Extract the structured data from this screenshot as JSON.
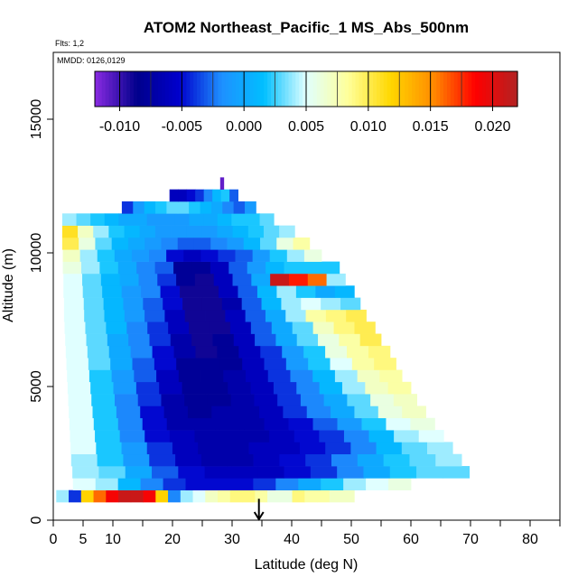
{
  "chart_data": {
    "type": "heatmap",
    "title": "ATOM2 Northeast_Pacific_1 MS_Abs_500nm",
    "flights_label": "Flts: 1,2",
    "dates_label": "MMDD: 0126,0129",
    "xlabel": "Latitude (deg N)",
    "ylabel": "Altitude (m)",
    "xlim": [
      0,
      85
    ],
    "ylim": [
      0,
      17500
    ],
    "x_ticks": [
      0,
      5,
      10,
      20,
      30,
      40,
      50,
      60,
      70,
      80
    ],
    "y_ticks": [
      0,
      5000,
      10000,
      15000
    ],
    "colorbar": {
      "min": -0.012,
      "max": 0.022,
      "ticks": [
        -0.01,
        -0.005,
        0.0,
        0.005,
        0.01,
        0.015,
        0.02
      ],
      "tick_labels": [
        "-0.010",
        "-0.005",
        "0.000",
        "0.005",
        "0.010",
        "0.015",
        "0.020"
      ],
      "colors": [
        "#8a2be2",
        "#00008b",
        "#0000cd",
        "#1e90ff",
        "#00bfff",
        "#e0ffff",
        "#ffff99",
        "#ffd700",
        "#ff8c00",
        "#ff0000",
        "#b22222"
      ]
    },
    "grid": false,
    "legend": "top colorbar",
    "arrow_marker": {
      "latitude": 34.5,
      "direction": "down"
    },
    "rows": [
      {
        "altitude": 900,
        "x0": 0.5,
        "x1": 50.5,
        "values": [
          0.004,
          -0.004,
          0.012,
          0.016,
          0.019,
          0.021,
          0.021,
          0.019,
          0.012,
          -0.002,
          0.004,
          0.005,
          0.007,
          0.008,
          0.009,
          0.009,
          0.008,
          0.006,
          0.006,
          0.009,
          0.008,
          0.008,
          0.007,
          0.007
        ]
      },
      {
        "altitude": 1350,
        "x0": 3.3,
        "x1": 60.0,
        "values": [
          0.005,
          0.004,
          0.001,
          -0.002,
          -0.004,
          -0.005,
          -0.005,
          -0.005,
          -0.004,
          -0.002,
          0.0,
          0.002,
          0.004,
          0.005,
          0.006
        ]
      },
      {
        "altitude": 1800,
        "x0": 3.2,
        "x1": 69.8,
        "values": [
          0.004,
          0.003,
          0.0,
          -0.003,
          -0.005,
          -0.006,
          -0.006,
          -0.006,
          -0.005,
          -0.004,
          -0.002,
          0.0,
          0.002,
          0.003,
          0.003
        ]
      },
      {
        "altitude": 2250,
        "x0": 3.0,
        "x1": 68.5,
        "values": [
          0.004,
          0.002,
          -0.001,
          -0.004,
          -0.006,
          -0.007,
          -0.007,
          -0.006,
          -0.005,
          -0.004,
          -0.002,
          0.0,
          0.002,
          0.003,
          0.004
        ]
      },
      {
        "altitude": 2700,
        "x0": 2.9,
        "x1": 67.0,
        "values": [
          0.005,
          0.002,
          -0.001,
          -0.004,
          -0.006,
          -0.007,
          -0.007,
          -0.006,
          -0.006,
          -0.005,
          -0.004,
          -0.002,
          0.001,
          0.003,
          0.004
        ]
      },
      {
        "altitude": 3150,
        "x0": 2.8,
        "x1": 65.5,
        "values": [
          0.005,
          0.002,
          -0.002,
          -0.005,
          -0.006,
          -0.007,
          -0.007,
          -0.007,
          -0.006,
          -0.005,
          -0.004,
          -0.002,
          0.001,
          0.004,
          0.005
        ]
      },
      {
        "altitude": 3600,
        "x0": 2.7,
        "x1": 64.0,
        "values": [
          0.005,
          0.002,
          -0.002,
          -0.005,
          -0.007,
          -0.007,
          -0.007,
          -0.007,
          -0.006,
          -0.005,
          -0.003,
          -0.001,
          0.002,
          0.005,
          0.006
        ]
      },
      {
        "altitude": 4050,
        "x0": 2.6,
        "x1": 62.5,
        "values": [
          0.005,
          0.002,
          -0.002,
          -0.005,
          -0.007,
          -0.008,
          -0.007,
          -0.007,
          -0.006,
          -0.004,
          -0.002,
          0.0,
          0.003,
          0.006,
          0.007
        ]
      },
      {
        "altitude": 4500,
        "x0": 2.5,
        "x1": 61.0,
        "values": [
          0.005,
          0.002,
          -0.002,
          -0.004,
          -0.007,
          -0.008,
          -0.008,
          -0.007,
          -0.006,
          -0.004,
          -0.002,
          0.0,
          0.003,
          0.006,
          0.007
        ]
      },
      {
        "altitude": 4950,
        "x0": 2.4,
        "x1": 60.0,
        "values": [
          0.005,
          0.002,
          -0.001,
          -0.004,
          -0.006,
          -0.008,
          -0.008,
          -0.007,
          -0.006,
          -0.004,
          -0.002,
          0.001,
          0.004,
          0.007,
          0.008
        ]
      },
      {
        "altitude": 5400,
        "x0": 2.3,
        "x1": 58.5,
        "values": [
          0.005,
          0.002,
          -0.001,
          -0.003,
          -0.006,
          -0.008,
          -0.008,
          -0.007,
          -0.006,
          -0.004,
          -0.002,
          0.001,
          0.004,
          0.007,
          0.008
        ]
      },
      {
        "altitude": 5850,
        "x0": 2.2,
        "x1": 57.5,
        "values": [
          0.005,
          0.003,
          0.0,
          -0.003,
          -0.005,
          -0.008,
          -0.008,
          -0.008,
          -0.006,
          -0.004,
          -0.001,
          0.002,
          0.005,
          0.008,
          0.009
        ]
      },
      {
        "altitude": 6300,
        "x0": 2.1,
        "x1": 56.5,
        "values": [
          0.005,
          0.003,
          0.0,
          -0.002,
          -0.005,
          -0.007,
          -0.009,
          -0.008,
          -0.006,
          -0.004,
          -0.001,
          0.002,
          0.006,
          0.008,
          0.009
        ]
      },
      {
        "altitude": 6750,
        "x0": 2.0,
        "x1": 55.0,
        "values": [
          0.005,
          0.003,
          0.0,
          -0.002,
          -0.004,
          -0.007,
          -0.009,
          -0.008,
          -0.006,
          -0.003,
          0.0,
          0.003,
          0.006,
          0.008,
          0.01
        ]
      },
      {
        "altitude": 7200,
        "x0": 1.9,
        "x1": 54.0,
        "values": [
          0.005,
          0.003,
          0.001,
          -0.002,
          -0.004,
          -0.006,
          -0.009,
          -0.009,
          -0.006,
          -0.003,
          0.0,
          0.003,
          0.007,
          0.009,
          0.01
        ]
      },
      {
        "altitude": 7650,
        "x0": 1.8,
        "x1": 52.5,
        "values": [
          0.005,
          0.003,
          0.001,
          -0.001,
          -0.003,
          -0.006,
          -0.009,
          -0.009,
          -0.006,
          -0.003,
          0.0,
          0.004,
          0.008,
          0.009,
          0.01
        ]
      },
      {
        "altitude": 8100,
        "x0": 1.8,
        "x1": 51.5,
        "values": [
          0.005,
          0.003,
          0.001,
          -0.001,
          -0.003,
          -0.005,
          -0.009,
          -0.009,
          -0.007,
          -0.003,
          0.001,
          0.004,
          0.005,
          0.004,
          0.003
        ]
      },
      {
        "altitude": 8550,
        "x0": 1.7,
        "x1": 50.5,
        "values": [
          0.005,
          0.003,
          0.001,
          -0.001,
          -0.002,
          -0.005,
          -0.009,
          -0.009,
          -0.006,
          -0.003,
          0.001,
          0.004,
          0.002,
          0.0,
          0.001
        ]
      },
      {
        "altitude": 9000,
        "x0": 1.7,
        "x1": 49.0,
        "values": [
          0.005,
          0.003,
          0.001,
          0.0,
          -0.002,
          -0.004,
          -0.008,
          -0.009,
          -0.006,
          -0.003,
          0.0,
          0.021,
          0.018,
          0.016,
          0.004
        ]
      },
      {
        "altitude": 9450,
        "x0": 1.6,
        "x1": 48.0,
        "values": [
          0.006,
          0.004,
          0.002,
          0.0,
          -0.002,
          -0.003,
          -0.008,
          -0.008,
          -0.006,
          -0.003,
          -0.001,
          0.001,
          0.002,
          0.002,
          0.002
        ]
      },
      {
        "altitude": 9900,
        "x0": 1.6,
        "x1": 45.0,
        "values": [
          0.007,
          0.004,
          0.002,
          0.0,
          -0.001,
          -0.002,
          -0.005,
          -0.006,
          -0.005,
          -0.004,
          -0.003,
          -0.001,
          0.002,
          0.004,
          0.006
        ]
      },
      {
        "altitude": 10350,
        "x0": 1.5,
        "x1": 43.0,
        "values": [
          0.01,
          0.006,
          0.003,
          0.001,
          0.0,
          -0.001,
          -0.002,
          -0.003,
          -0.003,
          -0.002,
          -0.001,
          0.001,
          0.003,
          0.006,
          0.008
        ]
      },
      {
        "altitude": 10800,
        "x0": 1.5,
        "x1": 40.5,
        "values": [
          0.011,
          0.007,
          0.004,
          0.002,
          0.001,
          0.0,
          -0.001,
          -0.001,
          -0.001,
          -0.001,
          0.0,
          0.001,
          0.002,
          0.003,
          0.004
        ]
      },
      {
        "altitude": 11250,
        "x0": 1.5,
        "x1": 37.0,
        "values": [
          0.004,
          0.003,
          0.002,
          0.001,
          0.0,
          0.0,
          -0.001,
          -0.001,
          -0.001,
          0.0,
          0.0,
          0.001,
          0.002,
          0.002,
          0.003
        ]
      },
      {
        "altitude": 11700,
        "x0": 11.5,
        "x1": 34.0,
        "values": [
          -0.004,
          -0.001,
          0.001,
          0.002,
          0.003,
          0.003,
          0.002,
          0.001,
          0.0,
          -0.002,
          -0.003,
          -0.001
        ]
      },
      {
        "altitude": 12150,
        "x0": 19.5,
        "x1": 31.0,
        "values": [
          -0.006,
          -0.006,
          -0.005,
          -0.004,
          -0.002,
          0.001,
          0.002,
          -0.003
        ]
      },
      {
        "altitude": 12600,
        "x0": 28.0,
        "x1": 28.6,
        "values": [
          -0.011
        ]
      }
    ]
  }
}
